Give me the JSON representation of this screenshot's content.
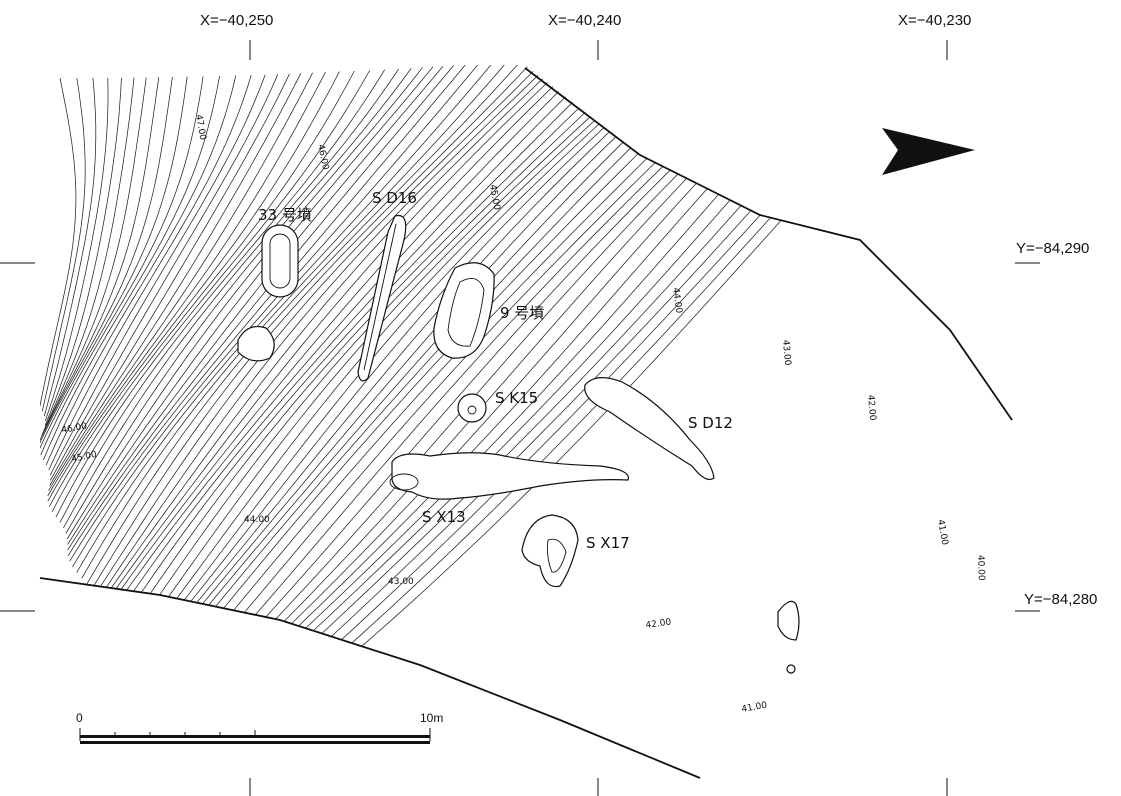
{
  "grid": {
    "x_labels": [
      "X=−40,250",
      "X=−40,240",
      "X=−40,230"
    ],
    "y_labels": [
      "Y=−84,290",
      "Y=−84,280"
    ]
  },
  "features": [
    {
      "id": "tomb33",
      "label": "33 号墳"
    },
    {
      "id": "sd16",
      "label": "S D16"
    },
    {
      "id": "tomb9",
      "label": "9 号墳"
    },
    {
      "id": "sk15",
      "label": "S K15"
    },
    {
      "id": "sd12",
      "label": "S D12"
    },
    {
      "id": "sx13",
      "label": "S X13"
    },
    {
      "id": "sx17",
      "label": "S X17"
    }
  ],
  "elevations": [
    "47.00",
    "46.00",
    "45.00",
    "44.00",
    "43.00",
    "42.00",
    "41.00",
    "40.00",
    "46.00",
    "45.00",
    "44.00",
    "43.00",
    "42.00",
    "41.00"
  ],
  "scale": {
    "start": "0",
    "end": "10m"
  },
  "north_arrow": {
    "icon": "north-arrow-icon"
  }
}
